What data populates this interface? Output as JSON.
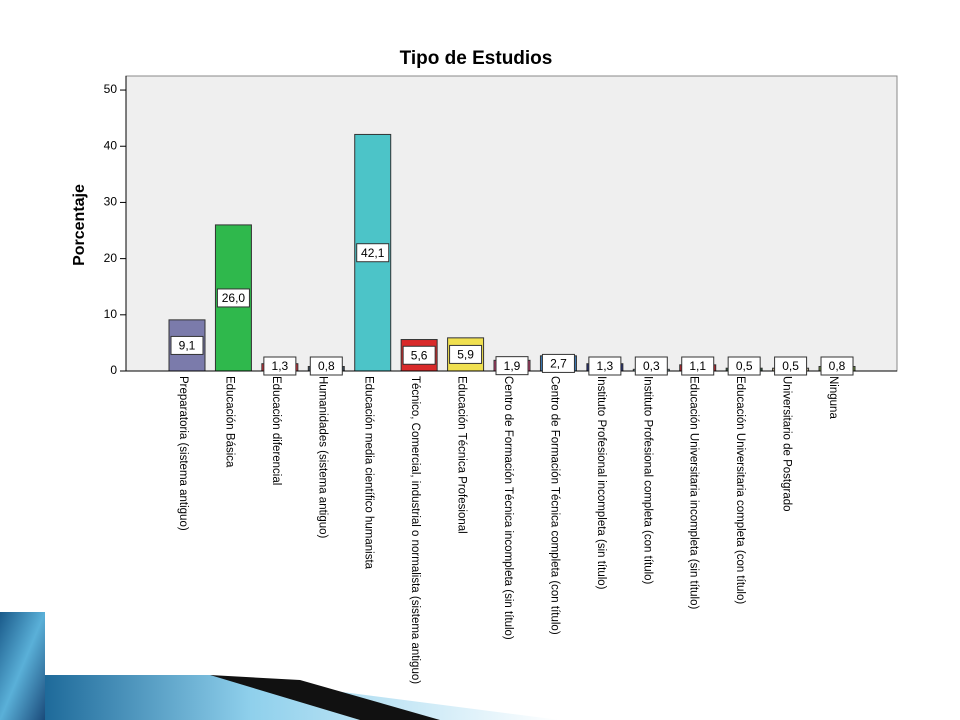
{
  "chart_data": {
    "type": "bar",
    "title": "Tipo de Estudios",
    "y_label": "Porcentaje",
    "categories": [
      "Preparatoria (sistema antiguo)",
      "Educación Básica",
      "Educación diferencial",
      "Humanidades (sistema antiguo)",
      "Educación media científico humanista",
      "Técnico, Comercial, industrial o normalista (sistema antiguo)",
      "Educación Técnica Profesional",
      "Centro de Formación Técnica incompleta (sin título)",
      "Centro de Formación Técnica completa (con título)",
      "Instituto Profesional incompleta (sin título)",
      "Instituto Profesional completa (con título)",
      "Educación Universitaria incompleta (sin título)",
      "Educación Universitaria completa (con título)",
      "Universitario de Postgrado",
      "Ninguna"
    ],
    "values": [
      9.1,
      26.0,
      1.3,
      0.8,
      42.1,
      5.6,
      5.9,
      1.9,
      2.7,
      1.3,
      0.3,
      1.1,
      0.5,
      0.5,
      0.8
    ],
    "value_labels": [
      "9,1",
      "26,0",
      "1,3",
      "0,8",
      "42,1",
      "5,6",
      "5,9",
      "1,9",
      "2,7",
      "1,3",
      "0,3",
      "1,1",
      "0,5",
      "0,5",
      "0,8"
    ],
    "colors": [
      "#7b7bab",
      "#2fb84c",
      "#d9323c",
      "#3b4a5a",
      "#4cc4c8",
      "#d92a2a",
      "#f0e050",
      "#c63a6e",
      "#3a7ab8",
      "#1e2a7a",
      "#9ad0d8",
      "#c2262e",
      "#2a5a3a",
      "#c8b890",
      "#6a8a3a"
    ],
    "ylim": [
      0,
      52.5
    ],
    "yticks": [
      0,
      10,
      20,
      30,
      40,
      50
    ],
    "grid": false
  }
}
